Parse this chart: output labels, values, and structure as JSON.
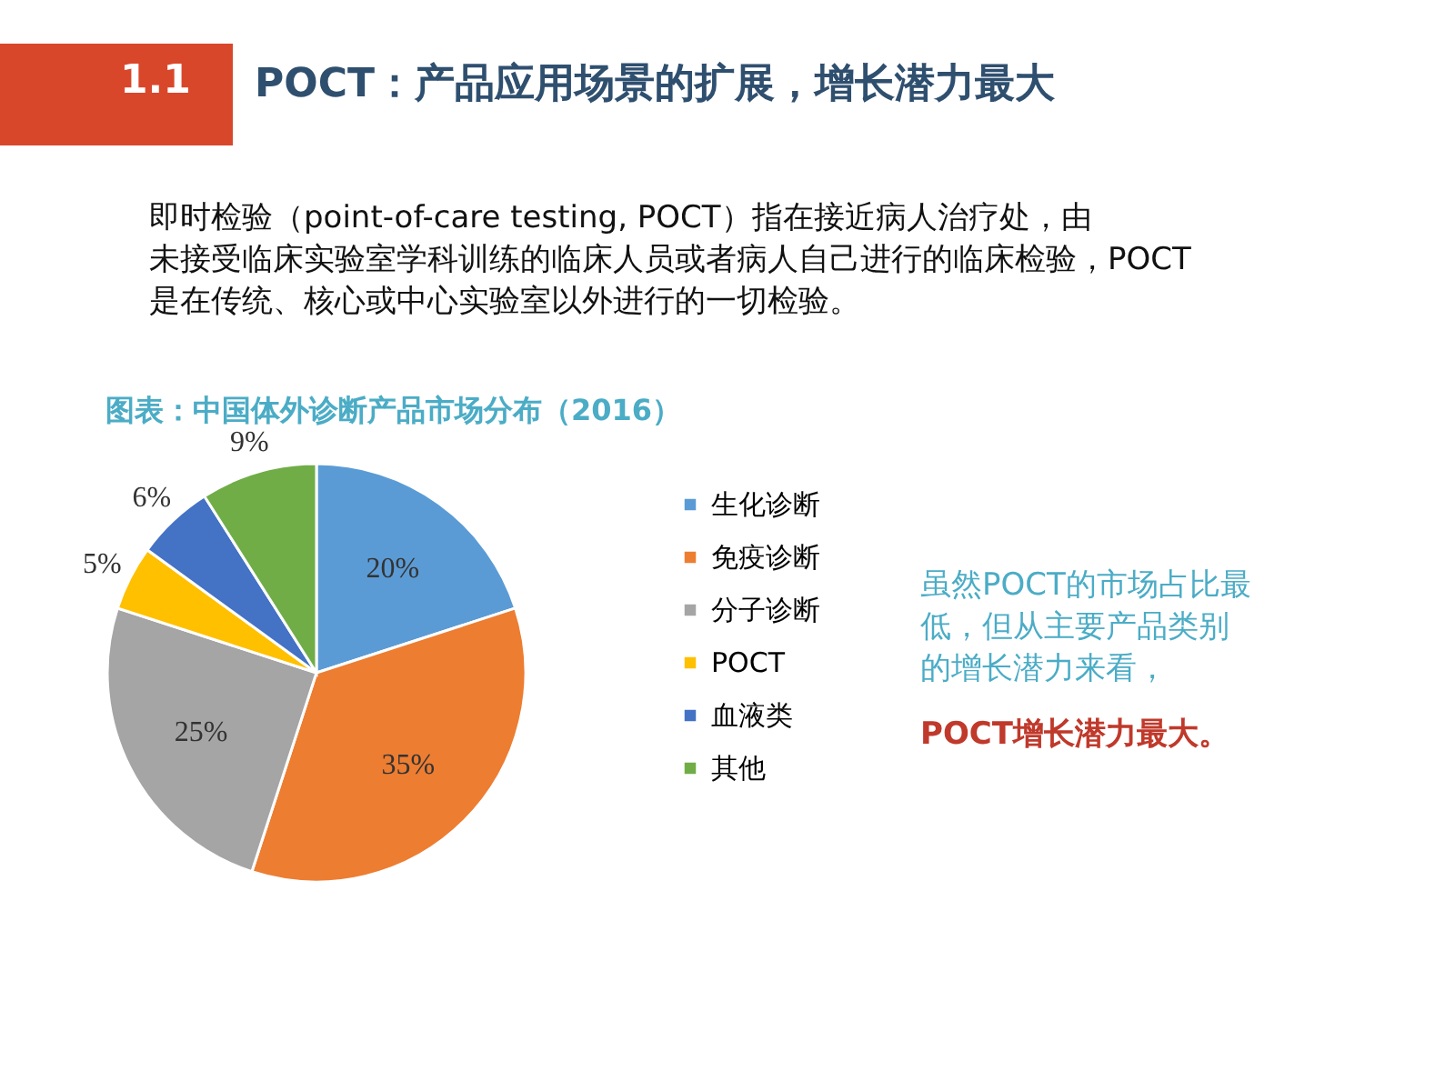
{
  "chart_data": {
    "type": "pie",
    "title": "POCT：产品应用场景的扩展，增长潜力最大",
    "subtitle": "即时检验（point-of-care testing, POCT）指在接近病人治疗处，由未接受临床实验室学科训练的临床人员或者病人自己进行的临床检验，POCT是在传统、核心或中心实验室以外进行的一切检验。",
    "annotations": [
      "1.1",
      "图表：中国体外诊断产品市场分布（2016）",
      "虽然POCT的市场占比最低，但从主要产品类别的增长潜力来看，",
      "POCT增长潜力最大。"
    ],
    "categories": [
      "生化诊断",
      "免疫诊断",
      "分子诊断",
      "POCT",
      "血液类",
      "其他"
    ],
    "values": [
      20,
      35,
      25,
      5,
      6,
      9
    ],
    "value_labels": [
      "20%",
      "35%",
      "25%",
      "5%",
      "6%",
      "9%"
    ],
    "colors": [
      "#5b9bd5",
      "#ed7d31",
      "#a5a5a5",
      "#ffc000",
      "#4472c4",
      "#70ad47"
    ],
    "legend": "right"
  }
}
